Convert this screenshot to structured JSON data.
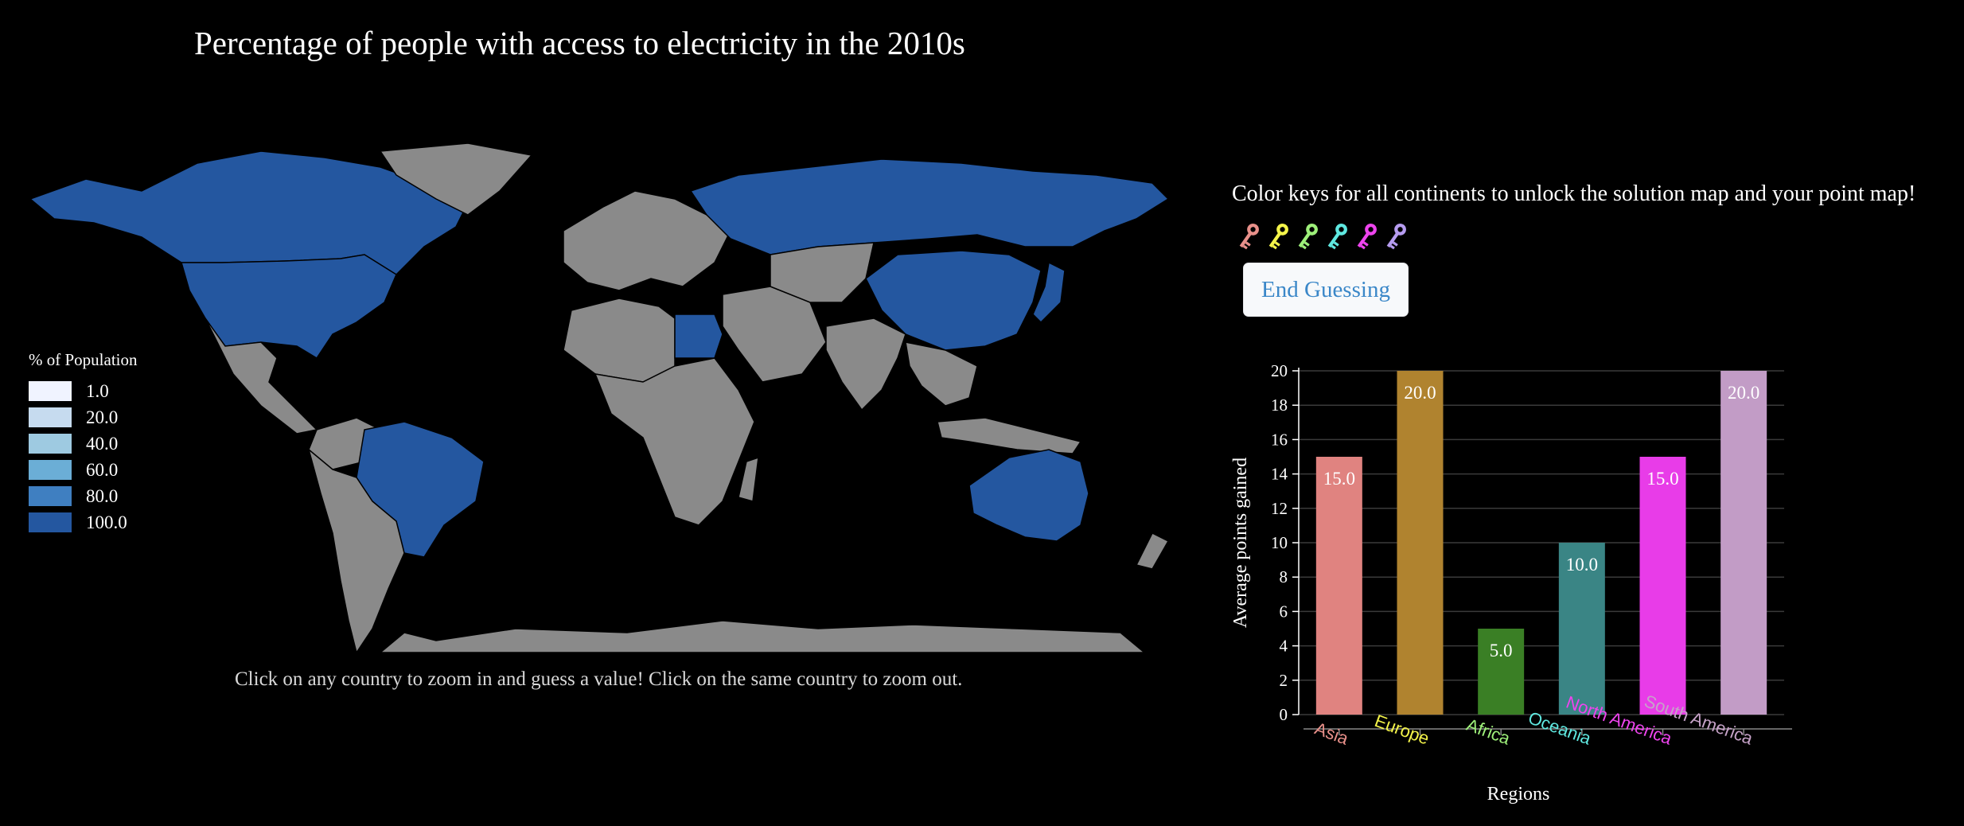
{
  "page": {
    "title": "Percentage of people with access to electricity in the 2010s",
    "map_instructions": "Click on any country to zoom in and guess a value! Click on the same country to zoom out."
  },
  "legend": {
    "title": "% of Population",
    "items": [
      {
        "label": "1.0",
        "color": "#f0f3ff"
      },
      {
        "label": "20.0",
        "color": "#c6dbef"
      },
      {
        "label": "40.0",
        "color": "#9ecae1"
      },
      {
        "label": "60.0",
        "color": "#6baed6"
      },
      {
        "label": "80.0",
        "color": "#3f7fc1"
      },
      {
        "label": "100.0",
        "color": "#2457a0"
      }
    ]
  },
  "map_colors": {
    "highlighted": "#2457a0",
    "default": "#8a8a8a",
    "background": "#000000",
    "border": "#000000"
  },
  "keys": {
    "instructions": "Color keys for all continents to unlock the solution map and your point map!",
    "items": [
      {
        "name": "asia-key-icon",
        "color": "#e8908a"
      },
      {
        "name": "europe-key-icon",
        "color": "#f4f44a"
      },
      {
        "name": "africa-key-icon",
        "color": "#9ef07a"
      },
      {
        "name": "oceania-key-icon",
        "color": "#5fe8e0"
      },
      {
        "name": "north-america-key-icon",
        "color": "#ee44ee"
      },
      {
        "name": "south-america-key-icon",
        "color": "#b69cf0"
      }
    ]
  },
  "end_button": {
    "label": "End Guessing"
  },
  "chart_data": {
    "type": "bar",
    "categories": [
      "Asia",
      "Europe",
      "Africa",
      "Oceania",
      "North America",
      "South America"
    ],
    "values": [
      15,
      20,
      5,
      10,
      15,
      20
    ],
    "value_labels": [
      "15.0",
      "20.0",
      "5.0",
      "10.0",
      "15.0",
      "20.0"
    ],
    "bar_colors": [
      "#e08380",
      "#b0832f",
      "#3a7f25",
      "#3a8585",
      "#e83ce8",
      "#c29cc6"
    ],
    "label_colors": [
      "#e8908a",
      "#f4f44a",
      "#9ef07a",
      "#5fe8e0",
      "#ee44ee",
      "#c6a2c8"
    ],
    "yticks": [
      "0",
      "2",
      "4",
      "6",
      "8",
      "10",
      "12",
      "14",
      "16",
      "18",
      "20"
    ],
    "ylim": [
      0,
      20
    ],
    "xlabel": "Regions",
    "ylabel": "Average points gained",
    "grid": true
  }
}
